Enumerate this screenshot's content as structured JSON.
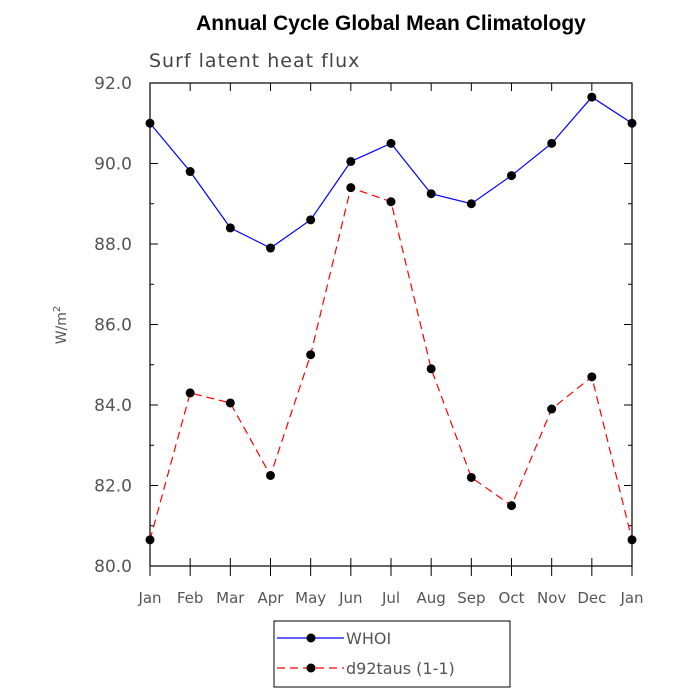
{
  "chart_data": {
    "type": "line",
    "title": "Annual Cycle Global Mean Climatology",
    "subtitle": "Surf latent heat flux",
    "ylabel": "W/m",
    "ylabel_superscript": "2",
    "xlabel": "",
    "ylim": [
      80.0,
      92.0
    ],
    "yticks": [
      "80.0",
      "82.0",
      "84.0",
      "86.0",
      "88.0",
      "90.0",
      "92.0"
    ],
    "categories": [
      "Jan",
      "Feb",
      "Mar",
      "Apr",
      "May",
      "Jun",
      "Jul",
      "Aug",
      "Sep",
      "Oct",
      "Nov",
      "Dec",
      "Jan"
    ],
    "series": [
      {
        "name": "WHOI",
        "color": "#0000ff",
        "dashed": false,
        "values": [
          91.0,
          89.8,
          88.4,
          87.9,
          88.6,
          90.05,
          90.5,
          89.25,
          89.0,
          89.7,
          90.5,
          91.65,
          91.0
        ]
      },
      {
        "name": "d92taus (1-1)",
        "color": "#ff0000",
        "dashed": true,
        "values": [
          80.65,
          84.3,
          84.05,
          82.25,
          85.25,
          89.4,
          89.05,
          84.9,
          82.2,
          81.5,
          83.9,
          84.7,
          80.65
        ]
      }
    ],
    "legend_position": "bottom-center"
  }
}
